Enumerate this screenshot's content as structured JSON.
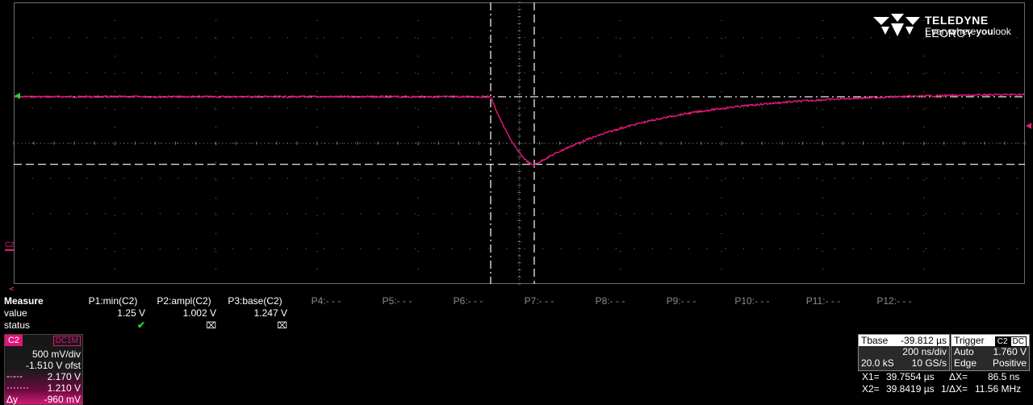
{
  "logo": {
    "brand": "TELEDYNE",
    "brand2": "LECROY",
    "tag_pre": "Everywhere",
    "tag_bold": "you",
    "tag_post": "look"
  },
  "colors": {
    "trace": "#e8197c",
    "grid": "#7a7a7a",
    "cursor": "#ffffff",
    "ok": "#2fd12f"
  },
  "channel_marker": "C2",
  "measure": {
    "title": "Measure",
    "row_value": "value",
    "row_status": "status",
    "params": [
      {
        "label": "P1:min(C2)",
        "value": "1.25 V",
        "status": "check",
        "active": true
      },
      {
        "label": "P2:ampl(C2)",
        "value": "1.002 V",
        "status": "warn",
        "active": true
      },
      {
        "label": "P3:base(C2)",
        "value": "1.247 V",
        "status": "warn",
        "active": true
      },
      {
        "label": "P4:- - -",
        "value": "",
        "status": "",
        "active": false
      },
      {
        "label": "P5:- - -",
        "value": "",
        "status": "",
        "active": false
      },
      {
        "label": "P6:- - -",
        "value": "",
        "status": "",
        "active": false
      },
      {
        "label": "P7:- - -",
        "value": "",
        "status": "",
        "active": false
      },
      {
        "label": "P8:- - -",
        "value": "",
        "status": "",
        "active": false
      },
      {
        "label": "P9:- - -",
        "value": "",
        "status": "",
        "active": false
      },
      {
        "label": "P10:- - -",
        "value": "",
        "status": "",
        "active": false
      },
      {
        "label": "P11:- - -",
        "value": "",
        "status": "",
        "active": false
      },
      {
        "label": "P12:- - -",
        "value": "",
        "status": "",
        "active": false
      }
    ]
  },
  "channel": {
    "name": "C2",
    "coupling": "DC1M",
    "vdiv": "500 mV/div",
    "offset": "-1.510 V ofst",
    "cursor1": "2.170 V",
    "cursor2": "1.210 V",
    "delta_label": "Δy",
    "delta": "-960 mV"
  },
  "timebase": {
    "title": "Tbase",
    "delay": "-39.812 µs",
    "tdiv": "200 ns/div",
    "samples": "20.0 kS",
    "rate": "10 GS/s"
  },
  "trigger": {
    "title": "Trigger",
    "ch": "C2",
    "cpl": "DC",
    "mode": "Auto",
    "level": "1.760 V",
    "type": "Edge",
    "slope": "Positive"
  },
  "cursors": {
    "x1_label": "X1=",
    "x1": "39.7554 µs",
    "dx_label": "ΔX=",
    "dx": "86.5 ns",
    "x2_label": "X2=",
    "x2": "39.8419 µs",
    "inv_label": "1/ΔX=",
    "inv": "11.56 MHz"
  },
  "waveform": {
    "baseline_v": 2.17,
    "min_v": 1.2,
    "final_v": 2.22,
    "fall_start_div": 6.65,
    "min_div": 7.2,
    "volts_per_div": 0.5,
    "offset_v": -1.51,
    "time_per_div_ns": 200
  }
}
